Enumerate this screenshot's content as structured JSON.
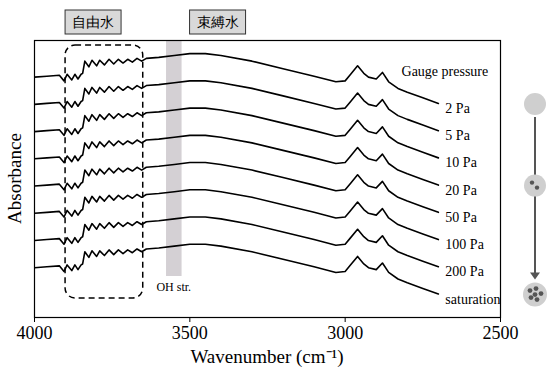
{
  "chart_data": {
    "type": "line",
    "x_label": "Wavenumber (cm⁻¹)",
    "y_label": "Absorbance",
    "legend_title": "Gauge pressure",
    "xlim": [
      4000,
      2500
    ],
    "xticks": [
      4000,
      3500,
      3000,
      2500
    ],
    "ylim": [
      0,
      295
    ],
    "tick_labels": "x",
    "x": [
      4000,
      3960,
      3920,
      3905,
      3895,
      3880,
      3870,
      3860,
      3850,
      3845,
      3838,
      3825,
      3815,
      3800,
      3790,
      3775,
      3760,
      3745,
      3730,
      3715,
      3700,
      3685,
      3670,
      3655,
      3640,
      3600,
      3550,
      3500,
      3450,
      3400,
      3300,
      3200,
      3100,
      3030,
      3000,
      2985,
      2960,
      2940,
      2925,
      2900,
      2880,
      2860,
      2830,
      2800,
      2750,
      2700
    ],
    "series": [
      {
        "name": "2 Pa",
        "color": "#000000",
        "values": [
          256,
          257,
          258,
          252,
          259,
          253,
          259,
          254,
          259,
          260,
          273,
          267,
          274,
          268,
          274,
          269,
          275,
          270,
          275,
          271,
          275,
          272,
          276,
          273,
          276,
          277,
          279,
          281,
          281,
          279,
          273,
          265,
          257,
          251,
          252,
          258,
          268,
          260,
          256,
          254,
          261,
          251,
          244,
          240,
          234,
          228
        ]
      },
      {
        "name": "5 Pa",
        "color": "#000000",
        "values": [
          227,
          228,
          229,
          223,
          230,
          224,
          230,
          225,
          230,
          231,
          244,
          238,
          245,
          239,
          245,
          240,
          246,
          241,
          246,
          242,
          246,
          243,
          247,
          244,
          247,
          248,
          250,
          252,
          252,
          250,
          244,
          236,
          228,
          222,
          223,
          229,
          239,
          231,
          227,
          225,
          232,
          222,
          215,
          211,
          205,
          199
        ]
      },
      {
        "name": "10 Pa",
        "color": "#000000",
        "values": [
          198,
          199,
          200,
          194,
          201,
          195,
          201,
          196,
          201,
          202,
          215,
          209,
          216,
          210,
          216,
          211,
          217,
          212,
          217,
          213,
          217,
          214,
          218,
          215,
          218,
          219,
          221,
          223,
          223,
          221,
          215,
          207,
          199,
          193,
          194,
          200,
          210,
          202,
          198,
          196,
          203,
          193,
          186,
          182,
          176,
          170
        ]
      },
      {
        "name": "20 Pa",
        "color": "#000000",
        "values": [
          169,
          170,
          171,
          165,
          172,
          166,
          172,
          167,
          172,
          173,
          186,
          180,
          187,
          181,
          187,
          182,
          188,
          183,
          188,
          184,
          188,
          185,
          189,
          186,
          189,
          190,
          192,
          194,
          194,
          192,
          186,
          178,
          170,
          164,
          165,
          171,
          181,
          173,
          169,
          167,
          174,
          164,
          157,
          153,
          147,
          141
        ]
      },
      {
        "name": "50 Pa",
        "color": "#000000",
        "values": [
          140,
          141,
          142,
          136,
          143,
          137,
          143,
          138,
          143,
          144,
          157,
          151,
          158,
          152,
          158,
          153,
          159,
          154,
          159,
          155,
          159,
          156,
          160,
          157,
          160,
          161,
          163,
          165,
          165,
          163,
          157,
          149,
          141,
          135,
          136,
          142,
          152,
          144,
          140,
          138,
          145,
          135,
          128,
          124,
          118,
          112
        ]
      },
      {
        "name": "100 Pa",
        "color": "#000000",
        "values": [
          111,
          112,
          113,
          107,
          114,
          108,
          114,
          109,
          114,
          115,
          128,
          122,
          129,
          123,
          129,
          124,
          130,
          125,
          130,
          126,
          130,
          127,
          131,
          128,
          131,
          132,
          134,
          136,
          136,
          134,
          128,
          120,
          112,
          106,
          107,
          113,
          123,
          115,
          111,
          109,
          116,
          106,
          99,
          95,
          89,
          83
        ]
      },
      {
        "name": "200 Pa",
        "color": "#000000",
        "values": [
          82,
          83,
          84,
          78,
          85,
          79,
          85,
          80,
          85,
          86,
          99,
          93,
          100,
          94,
          100,
          95,
          101,
          96,
          101,
          97,
          101,
          98,
          102,
          99,
          102,
          103,
          105,
          107,
          107,
          105,
          99,
          91,
          83,
          77,
          78,
          84,
          94,
          86,
          82,
          80,
          87,
          77,
          70,
          66,
          60,
          54
        ]
      },
      {
        "name": "saturation",
        "color": "#000000",
        "values": [
          53,
          54,
          55,
          49,
          56,
          50,
          56,
          51,
          56,
          57,
          70,
          64,
          71,
          65,
          71,
          66,
          72,
          67,
          72,
          68,
          72,
          69,
          73,
          70,
          73,
          74,
          76,
          78,
          78,
          76,
          70,
          62,
          54,
          48,
          49,
          55,
          65,
          57,
          53,
          51,
          58,
          48,
          41,
          37,
          31,
          25
        ]
      }
    ],
    "annotations": [
      {
        "text": "自由水",
        "region": [
          3900,
          3650
        ]
      },
      {
        "text": "束縛水",
        "band": [
          3575,
          3525
        ]
      },
      {
        "text": "OH str.",
        "band": [
          3575,
          3525
        ]
      }
    ]
  }
}
